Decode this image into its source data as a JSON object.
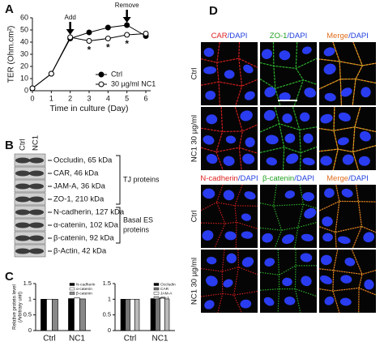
{
  "panel_labels": [
    "A",
    "B",
    "C",
    "D"
  ],
  "chart_data": [
    {
      "type": "line",
      "x_label": "Time in culture (Day)",
      "y_label": "TER (Ohm.cm²)",
      "x": [
        0,
        1,
        2,
        3,
        4,
        5,
        6
      ],
      "xlim": [
        0,
        6
      ],
      "xticks": [
        0,
        1,
        2,
        3,
        4,
        5,
        6
      ],
      "ylim": [
        0,
        60
      ],
      "yticks": [
        0,
        10,
        20,
        30,
        40,
        50,
        60
      ],
      "legend": "lower right",
      "series": [
        {
          "name": "Ctrl",
          "color": "#000000",
          "marker_fill": "#000000",
          "values": [
            2,
            14,
            43,
            48,
            52,
            54,
            45
          ]
        },
        {
          "name": "30 µg/ml NC1",
          "color": "#000000",
          "marker_fill": "#ffffff",
          "values": [
            2,
            14,
            44,
            41,
            43,
            46,
            47
          ]
        }
      ],
      "annotations": [
        {
          "text": "Add",
          "x": 2,
          "arrow": true
        },
        {
          "text": "Remove",
          "x": 5,
          "arrow": true
        },
        {
          "text": "*",
          "x": 3,
          "arrow": false
        },
        {
          "text": "*",
          "x": 4,
          "arrow": false
        },
        {
          "text": "*",
          "x": 5,
          "arrow": false
        }
      ]
    },
    {
      "type": "bar",
      "y_label": [
        "Relative protein level",
        "(Arbitrary unit)"
      ],
      "categories": [
        "Ctrl",
        "NC1"
      ],
      "ylim": [
        0,
        1.5
      ],
      "yticks": [
        0,
        0.5,
        1,
        1.5
      ],
      "legend": "upper right",
      "series": [
        {
          "name": "N-cadherin",
          "color": "#000000",
          "values": [
            1,
            1.02
          ]
        },
        {
          "name": "α-catenin",
          "color": "#ffffff",
          "values": [
            1,
            1.04
          ]
        },
        {
          "name": "β-catenin",
          "color": "#888888",
          "values": [
            1,
            1.01
          ]
        }
      ]
    },
    {
      "type": "bar",
      "categories": [
        "Ctrl",
        "NC1"
      ],
      "ylim": [
        0,
        1.5
      ],
      "yticks": [
        0,
        0.5,
        1,
        1.5
      ],
      "legend": "upper right",
      "series": [
        {
          "name": "Occludin",
          "color": "#000000",
          "values": [
            1,
            1.02
          ]
        },
        {
          "name": "CAR",
          "color": "#777777",
          "values": [
            1,
            1.03
          ]
        },
        {
          "name": "JAM-A",
          "color": "#ffffff",
          "values": [
            1,
            1.05
          ]
        },
        {
          "name": "ZO-1",
          "color": "#bbbbbb",
          "values": [
            1,
            1.01
          ]
        }
      ]
    }
  ],
  "blot": {
    "lanes": [
      "Ctrl",
      "NC1"
    ],
    "bands": [
      "Occludin, 65 kDa",
      "CAR, 46 kDa",
      "JAM-A, 36 kDa",
      "ZO-1, 210 kDa",
      "N-cadherin, 127 kDa",
      "α-catenin, 102 kDa",
      "β-catenin, 92 kDa",
      "β-Actin, 42 kDa"
    ],
    "group_tj": "TJ proteins",
    "group_es": [
      "Basal ES",
      "proteins"
    ]
  },
  "micrographs": {
    "sets": [
      {
        "headers": [
          [
            {
              "text": "CAR",
              "color": "#e02020"
            },
            {
              "text": "/DAPI",
              "color": "#2040e0"
            }
          ],
          [
            {
              "text": "ZO-1",
              "color": "#20a020"
            },
            {
              "text": "/DAPI",
              "color": "#2040e0"
            }
          ],
          [
            {
              "text": "Merge",
              "color": "#e07020"
            },
            {
              "text": "/DAPI",
              "color": "#2040e0"
            }
          ]
        ],
        "rows": [
          "Ctrl",
          "NC1 30 µg/ml"
        ]
      },
      {
        "headers": [
          [
            {
              "text": "N-cadherin",
              "color": "#e02020"
            },
            {
              "text": "/DAPI",
              "color": "#2040e0"
            }
          ],
          [
            {
              "text": "β-catenin",
              "color": "#20a020"
            },
            {
              "text": "/DAPI",
              "color": "#2040e0"
            }
          ],
          [
            {
              "text": "Merge",
              "color": "#e07020"
            },
            {
              "text": "/DAPI",
              "color": "#2040e0"
            }
          ]
        ],
        "rows": [
          "Ctrl",
          "NC1 30 µg/ml"
        ]
      }
    ]
  }
}
